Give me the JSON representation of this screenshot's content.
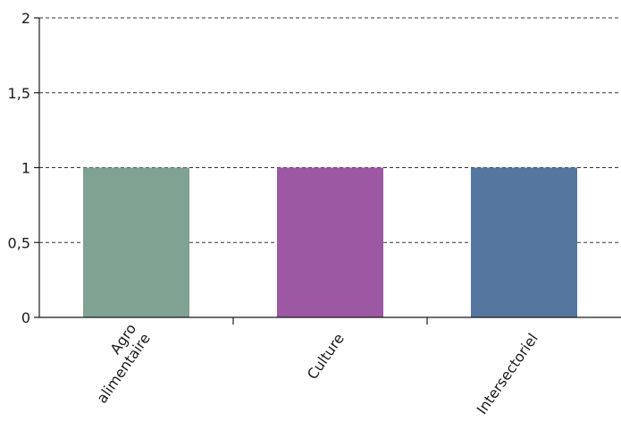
{
  "chart_data": {
    "type": "bar",
    "title": "",
    "xlabel": "",
    "ylabel": "",
    "categories": [
      [
        "Agro",
        "alimentaire"
      ],
      [
        "Culture"
      ],
      [
        "Intersectoriel"
      ]
    ],
    "values": [
      1,
      1,
      1
    ],
    "colors": [
      "#7fa293",
      "#9c58a2",
      "#55769e"
    ],
    "ylim": [
      0,
      2
    ],
    "yticks": [
      {
        "value": 0,
        "label": "0"
      },
      {
        "value": 0.5,
        "label": "0,5"
      },
      {
        "value": 1,
        "label": "1"
      },
      {
        "value": 1.5,
        "label": "1,5"
      },
      {
        "value": 2,
        "label": "2"
      }
    ],
    "grid": true,
    "legend": "none"
  }
}
